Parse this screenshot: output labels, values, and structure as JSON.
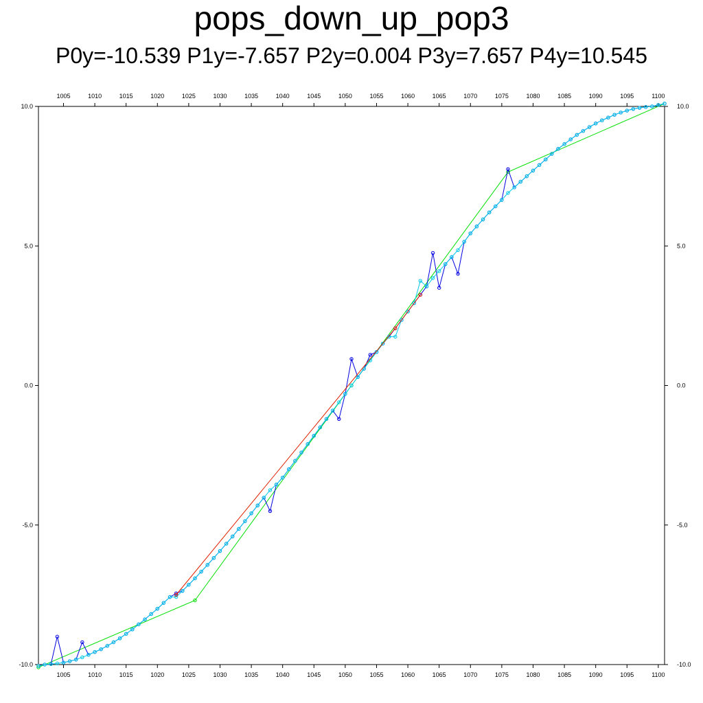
{
  "chart_data": {
    "type": "line",
    "title": "pops_down_up_pop3",
    "subtitle": "P0y=-10.539 P1y=-7.657 P2y=0.004 P3y=7.657 P4y=10.545",
    "xlim": [
      1001,
      1101
    ],
    "ylim": [
      -10,
      10
    ],
    "x_ticks": [
      1005,
      1010,
      1015,
      1020,
      1025,
      1030,
      1035,
      1040,
      1045,
      1050,
      1055,
      1060,
      1065,
      1070,
      1075,
      1080,
      1085,
      1090,
      1095,
      1100
    ],
    "x_tick_labels": [
      "1005",
      "1010",
      "1015",
      "1020",
      "1025",
      "1030",
      "1035",
      "1040",
      "1045",
      "1050",
      "1055",
      "1060",
      "1065",
      "1070",
      "1075",
      "1080",
      "1085",
      "1090",
      "1095",
      "1100"
    ],
    "y_ticks": [
      -10,
      -5,
      0,
      5,
      10
    ],
    "y_tick_labels": [
      "-10.0",
      "-5.0",
      "0.0",
      "5.0",
      "10.0"
    ],
    "grid": false,
    "series": [
      {
        "color": "#00e000",
        "marker": "circle",
        "x": [
          1001,
          1026,
          1051,
          1076,
          1101
        ],
        "y": [
          -10.1,
          -7.7,
          0.0,
          7.65,
          10.1
        ]
      },
      {
        "color": "#0000e0",
        "marker": "circle",
        "x": [
          1001,
          1002,
          1003,
          1004,
          1005,
          1006,
          1007,
          1008,
          1009,
          1010,
          1011,
          1012,
          1013,
          1014,
          1015,
          1016,
          1017,
          1018,
          1019,
          1020,
          1021,
          1022,
          1023,
          1024,
          1025,
          1026,
          1027,
          1028,
          1029,
          1030,
          1031,
          1032,
          1033,
          1034,
          1035,
          1036,
          1037,
          1038,
          1039,
          1040,
          1041,
          1042,
          1043,
          1044,
          1045,
          1046,
          1047,
          1048,
          1049,
          1050,
          1051,
          1052,
          1053,
          1054,
          1055,
          1056,
          1057,
          1058,
          1059,
          1060,
          1061,
          1062,
          1063,
          1064,
          1065,
          1066,
          1067,
          1068,
          1069,
          1070,
          1071,
          1072,
          1073,
          1074,
          1075,
          1076,
          1077,
          1078,
          1079,
          1080,
          1081,
          1082,
          1083,
          1084,
          1085,
          1086,
          1087,
          1088,
          1089,
          1090,
          1091,
          1092,
          1093,
          1094,
          1095,
          1096,
          1097,
          1098,
          1099,
          1100,
          1101
        ],
        "y": [
          -10.05,
          -10.0,
          -9.98,
          -9.0,
          -9.93,
          -9.88,
          -9.82,
          -9.2,
          -9.65,
          -9.55,
          -9.45,
          -9.33,
          -9.2,
          -9.06,
          -8.9,
          -8.74,
          -8.56,
          -8.38,
          -8.19,
          -8.0,
          -7.79,
          -7.58,
          -7.45,
          -7.36,
          -7.14,
          -6.91,
          -6.67,
          -6.43,
          -6.18,
          -5.93,
          -5.67,
          -5.41,
          -5.14,
          -4.86,
          -4.58,
          -4.3,
          -4.02,
          -4.5,
          -3.55,
          -3.3,
          -3.0,
          -2.7,
          -2.4,
          -2.1,
          -1.8,
          -1.5,
          -1.2,
          -0.9,
          -1.2,
          -0.3,
          0.95,
          0.3,
          0.6,
          1.1,
          1.2,
          1.5,
          1.75,
          2.05,
          2.35,
          2.65,
          2.95,
          3.25,
          3.55,
          4.75,
          3.5,
          4.35,
          4.6,
          4.0,
          5.15,
          5.45,
          5.7,
          5.95,
          6.2,
          6.42,
          6.65,
          7.75,
          7.1,
          7.3,
          7.5,
          7.7,
          7.9,
          8.1,
          8.3,
          8.48,
          8.65,
          8.82,
          8.98,
          9.12,
          9.26,
          9.39,
          9.5,
          9.6,
          9.7,
          9.78,
          9.85,
          9.91,
          9.95,
          9.98,
          10.0,
          10.05,
          10.1
        ]
      },
      {
        "color": "#00c8e8",
        "marker": "circle",
        "x": [
          1001,
          1002,
          1003,
          1004,
          1005,
          1006,
          1007,
          1008,
          1009,
          1010,
          1011,
          1012,
          1013,
          1014,
          1015,
          1016,
          1017,
          1018,
          1019,
          1020,
          1021,
          1022,
          1023,
          1024,
          1025,
          1026,
          1027,
          1028,
          1029,
          1030,
          1031,
          1032,
          1033,
          1034,
          1035,
          1036,
          1037,
          1038,
          1039,
          1040,
          1041,
          1042,
          1043,
          1044,
          1045,
          1046,
          1047,
          1048,
          1049,
          1050,
          1051,
          1052,
          1053,
          1054,
          1055,
          1056,
          1057,
          1058,
          1059,
          1060,
          1061,
          1062,
          1063,
          1064,
          1065,
          1066,
          1067,
          1068,
          1069,
          1070,
          1071,
          1072,
          1073,
          1074,
          1075,
          1076,
          1077,
          1078,
          1079,
          1080,
          1081,
          1082,
          1083,
          1084,
          1085,
          1086,
          1087,
          1088,
          1089,
          1090,
          1091,
          1092,
          1093,
          1094,
          1095,
          1096,
          1097,
          1098,
          1099,
          1100,
          1101
        ],
        "y": [
          -10.05,
          -10.0,
          -9.98,
          -9.96,
          -9.93,
          -9.88,
          -9.82,
          -9.74,
          -9.65,
          -9.55,
          -9.45,
          -9.33,
          -9.2,
          -9.06,
          -8.9,
          -8.74,
          -8.56,
          -8.38,
          -8.19,
          -8.0,
          -7.79,
          -7.58,
          -7.58,
          -7.36,
          -7.14,
          -6.91,
          -6.67,
          -6.43,
          -6.18,
          -5.93,
          -5.67,
          -5.41,
          -5.14,
          -4.86,
          -4.58,
          -4.3,
          -4.02,
          -3.75,
          -3.55,
          -3.3,
          -3.0,
          -2.7,
          -2.4,
          -2.1,
          -1.8,
          -1.5,
          -1.2,
          -0.9,
          -0.6,
          -0.3,
          0.0,
          0.3,
          0.6,
          0.9,
          1.2,
          1.5,
          1.75,
          1.75,
          2.35,
          2.65,
          2.95,
          3.75,
          3.55,
          3.85,
          4.1,
          4.35,
          4.6,
          4.85,
          5.15,
          5.45,
          5.7,
          5.95,
          6.2,
          6.42,
          6.65,
          6.9,
          7.1,
          7.3,
          7.5,
          7.7,
          7.9,
          8.1,
          8.3,
          8.48,
          8.65,
          8.82,
          8.98,
          9.12,
          9.26,
          9.39,
          9.5,
          9.6,
          9.7,
          9.78,
          9.85,
          9.91,
          9.95,
          9.98,
          10.0,
          10.05,
          10.1
        ]
      },
      {
        "color": "#e02000",
        "marker": "circle",
        "x": [
          1023,
          1058,
          1062
        ],
        "y": [
          -7.5,
          2.05,
          3.25
        ]
      }
    ]
  }
}
